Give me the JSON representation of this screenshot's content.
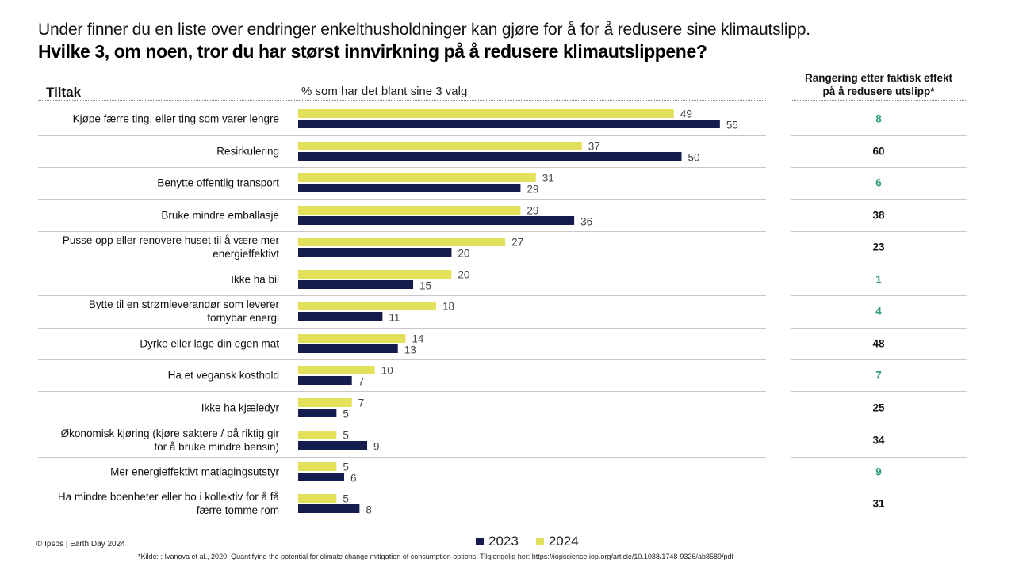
{
  "header": {
    "subtitle": "Under finner du en liste over endringer enkelthusholdninger  kan gjøre for å for å redusere sine klimautslipp.",
    "title": "Hvilke 3, om noen, tror du har størst innvirkning på å redusere klimautslippene?"
  },
  "columns": {
    "tiltak": "Tiltak",
    "pct": "% som har det blant sine 3 valg",
    "rank_line1": "Rangering etter faktisk effekt",
    "rank_line2": "på å redusere utslipp*"
  },
  "colors": {
    "y2023": "#141b4d",
    "y2024": "#e3e15a",
    "rank_green": "#2e9e6e",
    "rank_black": "#111111"
  },
  "chart_data": {
    "type": "bar",
    "orientation": "horizontal",
    "categories": [
      "Kjøpe færre ting, eller ting som varer lengre",
      "Resirkulering",
      "Benytte offentlig transport",
      "Bruke mindre emballasje",
      "Pusse opp eller renovere huset til å være mer energieffektivt",
      "Ikke ha bil",
      "Bytte til en strømleverandør som leverer fornybar energi",
      "Dyrke eller lage din egen mat",
      "Ha et vegansk kosthold",
      "Ikke ha kjæledyr",
      "Økonomisk kjøring (kjøre saktere / på riktig gir for å bruke mindre bensin)",
      "Mer energieffektivt matlagingsutstyr",
      "Ha mindre boenheter eller bo i kollektiv for å få færre tomme rom"
    ],
    "series": [
      {
        "name": "2024",
        "values": [
          49,
          37,
          31,
          29,
          27,
          20,
          18,
          14,
          10,
          7,
          5,
          5,
          5
        ]
      },
      {
        "name": "2023",
        "values": [
          55,
          50,
          29,
          36,
          20,
          15,
          11,
          13,
          7,
          5,
          9,
          6,
          8
        ]
      }
    ],
    "xlim": [
      0,
      100
    ],
    "grid": false,
    "legend": "bottom"
  },
  "rows": [
    {
      "line1": "Kjøpe færre ting, eller ting som varer lengre",
      "line2": "",
      "rank": "8",
      "rank_color": "green"
    },
    {
      "line1": "Resirkulering",
      "line2": "",
      "rank": "60",
      "rank_color": "black"
    },
    {
      "line1": "Benytte offentlig transport",
      "line2": "",
      "rank": "6",
      "rank_color": "green"
    },
    {
      "line1": "Bruke mindre emballasje",
      "line2": "",
      "rank": "38",
      "rank_color": "black"
    },
    {
      "line1": "Pusse opp eller renovere huset til å være mer",
      "line2": "energieffektivt",
      "rank": "23",
      "rank_color": "black"
    },
    {
      "line1": "Ikke ha bil",
      "line2": "",
      "rank": "1",
      "rank_color": "green"
    },
    {
      "line1": "Bytte til en strømleverandør som leverer",
      "line2": "fornybar energi",
      "rank": "4",
      "rank_color": "green"
    },
    {
      "line1": "Dyrke eller lage din egen mat",
      "line2": "",
      "rank": "48",
      "rank_color": "black"
    },
    {
      "line1": "Ha et vegansk kosthold",
      "line2": "",
      "rank": "7",
      "rank_color": "green"
    },
    {
      "line1": "Ikke ha kjæledyr",
      "line2": "",
      "rank": "25",
      "rank_color": "black"
    },
    {
      "line1": "Økonomisk kjøring (kjøre saktere / på riktig gir",
      "line2": "for å bruke mindre bensin)",
      "rank": "34",
      "rank_color": "black"
    },
    {
      "line1": "Mer energieffektivt matlagingsutstyr",
      "line2": "",
      "rank": "9",
      "rank_color": "green"
    },
    {
      "line1": "Ha mindre boenheter eller bo i kollektiv for å få",
      "line2": "færre tomme rom",
      "rank": "31",
      "rank_color": "black"
    }
  ],
  "legend": {
    "label_2023": "2023",
    "label_2024": "2024"
  },
  "footer": {
    "copyright": "© Ipsos | Earth Day 2024",
    "footnote": "*Kilde: : Ivanova et al., 2020. Quantifying the potential for climate change mitigation of consumption options. Tilgjengelig her: https://iopscience.iop.org/article/10.1088/1748-9326/ab8589/pdf"
  }
}
